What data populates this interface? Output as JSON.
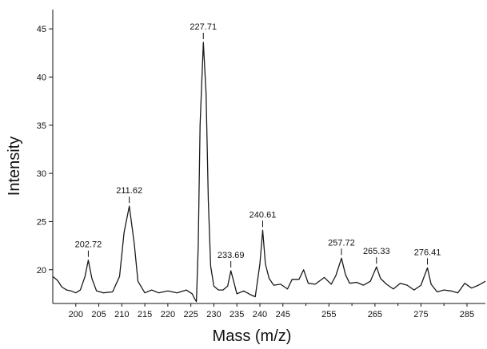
{
  "chart_data": {
    "type": "line",
    "title": "",
    "xlabel": "Mass (m/z)",
    "ylabel": "Intensity",
    "xlim": [
      195,
      289
    ],
    "ylim": [
      16.5,
      47
    ],
    "x_ticks": [
      200,
      205,
      210,
      215,
      220,
      225,
      230,
      235,
      240,
      245,
      255,
      265,
      275,
      285
    ],
    "y_ticks": [
      20,
      25,
      30,
      35,
      40,
      45
    ],
    "grid": false,
    "legend": "none",
    "line_color": "#1a1a1a",
    "series": [
      {
        "x": [
          195,
          196,
          197,
          198,
          199,
          200,
          201,
          202,
          202.72,
          203.5,
          204.5,
          206,
          208,
          209.5,
          210.5,
          211.62,
          212.7,
          213.5,
          215,
          216.5,
          218,
          220,
          222,
          224,
          225.3,
          225.8,
          226.2,
          226.6,
          227,
          227.71,
          228.3,
          228.8,
          229.3,
          230,
          231,
          232,
          233,
          233.69,
          234.3,
          235,
          236.5,
          238,
          239,
          240,
          240.61,
          241.2,
          242,
          243,
          244.5,
          246,
          247,
          248.5,
          249.5,
          250.5,
          252,
          254,
          255.5,
          256.5,
          257.72,
          258.6,
          259.5,
          261,
          262.5,
          264,
          265.33,
          266.2,
          267.5,
          269,
          270.5,
          272,
          273.5,
          275,
          276.41,
          277.2,
          278.5,
          280,
          281.5,
          283,
          284.5,
          286,
          287.5,
          289
        ],
        "y": [
          19.3,
          18.9,
          18.2,
          17.9,
          17.8,
          17.6,
          17.9,
          19.3,
          21.0,
          19.1,
          17.8,
          17.6,
          17.7,
          19.3,
          23.9,
          26.6,
          22.7,
          18.8,
          17.6,
          17.9,
          17.6,
          17.8,
          17.6,
          17.9,
          17.5,
          17.0,
          16.7,
          22.5,
          35.0,
          43.6,
          38.3,
          27.2,
          20.4,
          18.3,
          17.9,
          17.9,
          18.3,
          19.9,
          18.8,
          17.5,
          17.8,
          17.4,
          17.2,
          20.6,
          24.1,
          20.6,
          19.1,
          18.4,
          18.5,
          18.0,
          19.0,
          19.0,
          20.0,
          18.6,
          18.5,
          19.2,
          18.5,
          19.4,
          21.2,
          19.5,
          18.6,
          18.7,
          18.4,
          18.8,
          20.3,
          19.1,
          18.5,
          18.0,
          18.6,
          18.4,
          17.9,
          18.4,
          20.2,
          18.5,
          17.7,
          17.9,
          17.8,
          17.6,
          18.6,
          18.1,
          18.4,
          18.8
        ]
      }
    ],
    "peak_labels": [
      {
        "x": 202.72,
        "y": 21.0,
        "label": "202.72"
      },
      {
        "x": 211.62,
        "y": 26.6,
        "label": "211.62"
      },
      {
        "x": 227.71,
        "y": 43.6,
        "label": "227.71"
      },
      {
        "x": 233.69,
        "y": 19.9,
        "label": "233.69"
      },
      {
        "x": 240.61,
        "y": 24.1,
        "label": "240.61"
      },
      {
        "x": 257.72,
        "y": 21.2,
        "label": "257.72"
      },
      {
        "x": 265.33,
        "y": 20.3,
        "label": "265.33"
      },
      {
        "x": 276.41,
        "y": 20.2,
        "label": "276.41"
      }
    ]
  }
}
